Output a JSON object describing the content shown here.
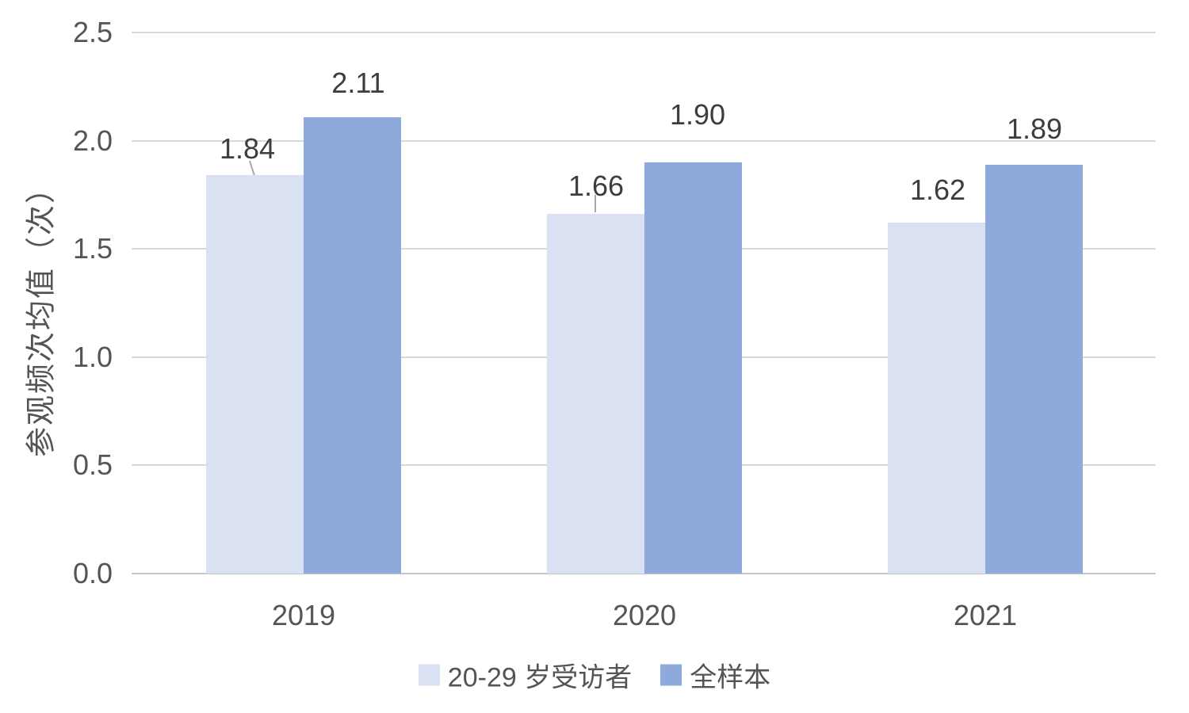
{
  "chart_data": {
    "type": "bar",
    "title": "",
    "ylabel": "参观频次均值（次）",
    "categories": [
      "2019",
      "2020",
      "2021"
    ],
    "series": [
      {
        "name": "20-29 岁受访者",
        "color": "#d9e1f2",
        "values": [
          1.84,
          1.66,
          1.62
        ],
        "labels": [
          "1.84",
          "1.66",
          "1.62"
        ]
      },
      {
        "name": "全样本",
        "color": "#8ea9db",
        "values": [
          2.11,
          1.9,
          1.89
        ],
        "labels": [
          "2.11",
          "1.90",
          "1.89"
        ]
      }
    ],
    "ylim": [
      0.0,
      2.5
    ],
    "ytick_step": 0.5,
    "yticks": [
      "0.0",
      "0.5",
      "1.0",
      "1.5",
      "2.0",
      "2.5"
    ],
    "grid": true,
    "legend_position": "bottom",
    "colors": {
      "gridline": "#d9d9d9",
      "axis_line": "#c6c6c6",
      "axis_text": "#555555",
      "data_label_text": "#3d3d3d",
      "leader_line": "#a8a8a8",
      "background": "#ffffff"
    }
  }
}
